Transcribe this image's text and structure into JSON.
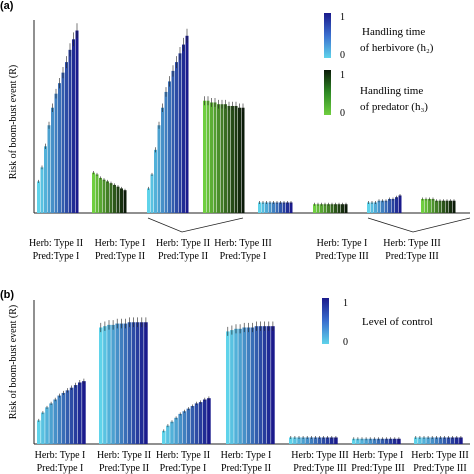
{
  "chart_data": [
    {
      "type": "bar",
      "panel_label": "(a)",
      "ylabel": "Risk of boom-bust event (R)",
      "legend": [
        {
          "title_line1": "Handling time",
          "title_line2": "of herbivore (h₂)",
          "scale_max": "1",
          "scale_min": "0",
          "colors": [
            "#5fd3ea",
            "#1a1a8c"
          ]
        },
        {
          "title_line1": "Handling time",
          "title_line2": "of predator (h₃)",
          "scale_max": "1",
          "scale_min": "0",
          "colors": [
            "#6fcf3f",
            "#0b1a08"
          ]
        }
      ],
      "groups": [
        {
          "name": "Herb: Type II / Pred: Type I (h₂ varied)",
          "palette": "blue",
          "values": [
            0.18,
            0.26,
            0.38,
            0.5,
            0.6,
            0.68,
            0.74,
            0.8,
            0.86,
            0.93,
            0.99,
            1.04
          ]
        },
        {
          "name": "Herb: Type I / Pred: Type II (h₃ varied)",
          "palette": "green",
          "values": [
            0.23,
            0.22,
            0.2,
            0.19,
            0.18,
            0.17,
            0.16,
            0.15,
            0.14,
            0.13
          ]
        },
        {
          "name": "Herb: Type II / Pred: Type II (h₂ varied)",
          "palette": "blue",
          "values": [
            0.14,
            0.22,
            0.36,
            0.5,
            0.6,
            0.69,
            0.75,
            0.81,
            0.86,
            0.91,
            0.96,
            1.01
          ]
        },
        {
          "name": "Herb: Type II / Pred: Type II (h₃ varied)",
          "palette": "green",
          "values": [
            0.64,
            0.64,
            0.63,
            0.63,
            0.62,
            0.62,
            0.62,
            0.61,
            0.61,
            0.61,
            0.6,
            0.6
          ]
        },
        {
          "name": "Herb: Type III / Pred: Type I (h₂ varied)",
          "palette": "blue",
          "values": [
            0.06,
            0.06,
            0.06,
            0.06,
            0.06,
            0.06,
            0.06,
            0.06,
            0.06,
            0.06
          ]
        },
        {
          "name": "Herb: Type I / Pred: Type III (h₃ varied)",
          "palette": "green",
          "values": [
            0.05,
            0.05,
            0.05,
            0.05,
            0.05,
            0.05,
            0.05,
            0.05,
            0.05,
            0.05
          ]
        },
        {
          "name": "Herb: Type III / Pred: Type III (h₂ varied)",
          "palette": "blue",
          "values": [
            0.06,
            0.06,
            0.06,
            0.07,
            0.07,
            0.07,
            0.08,
            0.08,
            0.09,
            0.1
          ]
        },
        {
          "name": "Herb: Type III / Pred: Type III (h₃ varied)",
          "palette": "green",
          "values": [
            0.08,
            0.08,
            0.08,
            0.08,
            0.07,
            0.07,
            0.07,
            0.07,
            0.07,
            0.07
          ]
        }
      ],
      "category_labels": [
        {
          "line1": "Herb: Type II",
          "line2": "Pred:Type I"
        },
        {
          "line1": "Herb: Type I",
          "line2": "Pred:Type II"
        },
        {
          "line1": "Herb: Type II",
          "line2": "Pred:Type II"
        },
        {
          "line1": "Herb: Type III",
          "line2": "Pred:Type I"
        },
        {
          "line1": "Herb: Type I",
          "line2": "Pred:Type III"
        },
        {
          "line1": "Herb: Type III",
          "line2": "Pred:Type III"
        }
      ],
      "ylim": [
        0,
        1.1
      ],
      "grid": false
    },
    {
      "type": "bar",
      "panel_label": "(b)",
      "ylabel": "Risk of boom-bust event (R)",
      "legend": [
        {
          "title_line1": "Level of control",
          "scale_max": "1",
          "scale_min": "0",
          "colors": [
            "#5fd3ea",
            "#1a1a8c"
          ]
        }
      ],
      "groups": [
        {
          "name": "Herb: Type I / Pred: Type I",
          "palette": "blue",
          "values": [
            0.18,
            0.24,
            0.28,
            0.31,
            0.34,
            0.37,
            0.39,
            0.41,
            0.43,
            0.45,
            0.47,
            0.48
          ]
        },
        {
          "name": "Herb: Type II / Pred: Type II",
          "palette": "blue",
          "values": [
            0.89,
            0.9,
            0.91,
            0.91,
            0.92,
            0.92,
            0.92,
            0.93,
            0.93,
            0.93,
            0.93,
            0.93
          ]
        },
        {
          "name": "Herb: Type II / Pred: Type I",
          "palette": "blue",
          "values": [
            0.1,
            0.14,
            0.17,
            0.2,
            0.23,
            0.25,
            0.27,
            0.29,
            0.31,
            0.32,
            0.34,
            0.35
          ]
        },
        {
          "name": "Herb: Type I / Pred: Type II",
          "palette": "blue",
          "values": [
            0.86,
            0.87,
            0.88,
            0.88,
            0.89,
            0.89,
            0.89,
            0.9,
            0.9,
            0.9,
            0.9,
            0.9
          ]
        },
        {
          "name": "Herb: Type III / Pred: Type III",
          "palette": "blue",
          "values": [
            0.05,
            0.05,
            0.05,
            0.05,
            0.05,
            0.05,
            0.05,
            0.05,
            0.05,
            0.05,
            0.05,
            0.05
          ]
        },
        {
          "name": "Herb: Type I / Pred: Type III",
          "palette": "blue",
          "values": [
            0.04,
            0.04,
            0.04,
            0.04,
            0.04,
            0.04,
            0.04,
            0.04,
            0.04,
            0.04,
            0.04,
            0.04
          ]
        },
        {
          "name": "Herb: Type III / Pred: Type III",
          "palette": "blue",
          "values": [
            0.05,
            0.05,
            0.05,
            0.05,
            0.05,
            0.05,
            0.05,
            0.05,
            0.05,
            0.05,
            0.05,
            0.05
          ]
        }
      ],
      "category_labels": [
        {
          "line1": "Herb: Type I",
          "line2": "Pred:Type I"
        },
        {
          "line1": "Herb: Type II",
          "line2": "Pred:Type II"
        },
        {
          "line1": "Herb: Type II",
          "line2": "Pred:Type I"
        },
        {
          "line1": "Herb: Type I",
          "line2": "Pred:Type II"
        },
        {
          "line1": "Herb: Type III",
          "line2": "Pred:Type III"
        },
        {
          "line1": "Herb: Type I",
          "line2": "Pred:Type III"
        },
        {
          "line1": "Herb: Type III",
          "line2": "Pred:Type III"
        }
      ],
      "ylim": [
        0,
        1.1
      ],
      "grid": false
    }
  ]
}
